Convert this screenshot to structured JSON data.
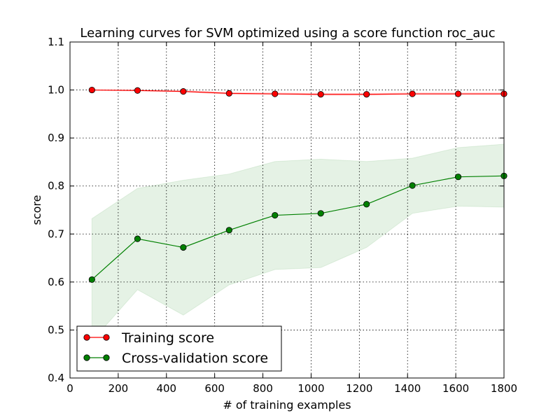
{
  "chart_data": {
    "type": "line",
    "title": "Learning curves for SVM optimized using a score function roc_auc",
    "xlabel": "# of training examples",
    "ylabel": "score",
    "xlim": [
      0,
      1800
    ],
    "ylim": [
      0.4,
      1.1
    ],
    "xticks": [
      "0",
      "200",
      "400",
      "600",
      "800",
      "1000",
      "1200",
      "1400",
      "1600",
      "1800"
    ],
    "yticks": [
      "0.4",
      "0.5",
      "0.6",
      "0.7",
      "0.8",
      "0.9",
      "1.0",
      "1.1"
    ],
    "grid": true,
    "legend_position": "lower-left",
    "x": [
      91,
      280,
      470,
      660,
      850,
      1040,
      1230,
      1420,
      1610,
      1800
    ],
    "series": [
      {
        "name": "Training score",
        "color": "#ff0000",
        "band_color": "#ff0000",
        "values": [
          1.0,
          0.999,
          0.997,
          0.993,
          0.992,
          0.991,
          0.991,
          0.992,
          0.992,
          0.992
        ],
        "lower": [
          0.999,
          0.998,
          0.996,
          0.991,
          0.99,
          0.989,
          0.989,
          0.99,
          0.99,
          0.99
        ],
        "upper": [
          1.0,
          1.0,
          0.999,
          0.995,
          0.994,
          0.993,
          0.993,
          0.994,
          0.994,
          0.994
        ]
      },
      {
        "name": "Cross-validation score",
        "color": "#008000",
        "band_color": "#008000",
        "values": [
          0.605,
          0.69,
          0.672,
          0.708,
          0.739,
          0.743,
          0.762,
          0.801,
          0.819,
          0.821
        ],
        "lower": [
          0.477,
          0.584,
          0.531,
          0.594,
          0.626,
          0.63,
          0.672,
          0.743,
          0.758,
          0.756
        ],
        "upper": [
          0.732,
          0.795,
          0.812,
          0.825,
          0.851,
          0.856,
          0.851,
          0.858,
          0.88,
          0.887
        ]
      }
    ]
  }
}
